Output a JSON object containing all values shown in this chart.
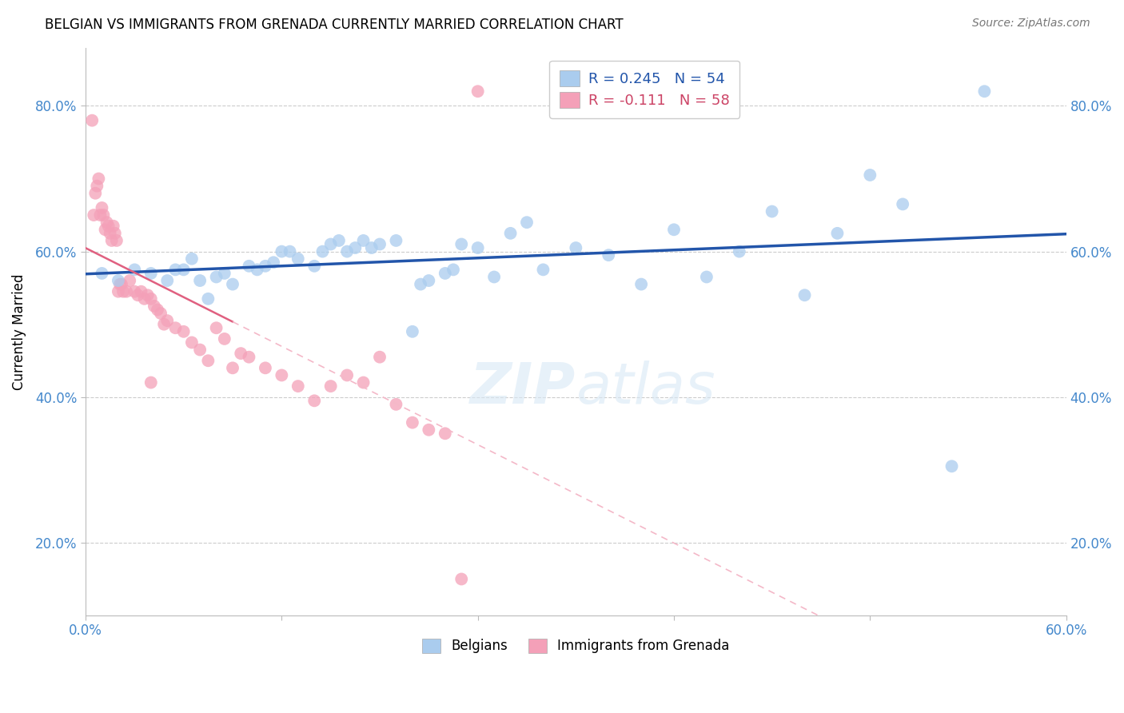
{
  "title": "BELGIAN VS IMMIGRANTS FROM GRENADA CURRENTLY MARRIED CORRELATION CHART",
  "source": "Source: ZipAtlas.com",
  "ylabel_label": "Currently Married",
  "xlim": [
    0.0,
    0.6
  ],
  "ylim": [
    0.1,
    0.88
  ],
  "yticks": [
    0.2,
    0.4,
    0.6,
    0.8
  ],
  "ytick_labels": [
    "20.0%",
    "40.0%",
    "60.0%",
    "80.0%"
  ],
  "xticks": [
    0.0,
    0.12,
    0.24,
    0.36,
    0.48,
    0.6
  ],
  "xtick_labels": [
    "0.0%",
    "",
    "",
    "",
    "",
    "60.0%"
  ],
  "legend_label1": "Belgians",
  "legend_label2": "Immigrants from Grenada",
  "blue_color": "#aaccee",
  "pink_color": "#f4a0b8",
  "blue_line_color": "#2255aa",
  "pink_line_solid_color": "#e06080",
  "pink_line_dash_color": "#f4b8c8",
  "blue_R": 0.245,
  "blue_N": 54,
  "pink_R": -0.111,
  "pink_N": 58,
  "blue_x": [
    0.01,
    0.02,
    0.03,
    0.04,
    0.05,
    0.055,
    0.06,
    0.065,
    0.07,
    0.075,
    0.08,
    0.085,
    0.09,
    0.1,
    0.105,
    0.11,
    0.115,
    0.12,
    0.125,
    0.13,
    0.14,
    0.145,
    0.15,
    0.155,
    0.16,
    0.165,
    0.17,
    0.175,
    0.18,
    0.19,
    0.2,
    0.205,
    0.21,
    0.22,
    0.225,
    0.23,
    0.24,
    0.25,
    0.26,
    0.27,
    0.28,
    0.3,
    0.32,
    0.34,
    0.36,
    0.38,
    0.4,
    0.42,
    0.44,
    0.46,
    0.48,
    0.5,
    0.53,
    0.55
  ],
  "blue_y": [
    0.57,
    0.56,
    0.575,
    0.57,
    0.56,
    0.575,
    0.575,
    0.59,
    0.56,
    0.535,
    0.565,
    0.57,
    0.555,
    0.58,
    0.575,
    0.58,
    0.585,
    0.6,
    0.6,
    0.59,
    0.58,
    0.6,
    0.61,
    0.615,
    0.6,
    0.605,
    0.615,
    0.605,
    0.61,
    0.615,
    0.49,
    0.555,
    0.56,
    0.57,
    0.575,
    0.61,
    0.605,
    0.565,
    0.625,
    0.64,
    0.575,
    0.605,
    0.595,
    0.555,
    0.63,
    0.565,
    0.6,
    0.655,
    0.54,
    0.625,
    0.705,
    0.665,
    0.305,
    0.82
  ],
  "pink_x": [
    0.004,
    0.005,
    0.006,
    0.007,
    0.008,
    0.009,
    0.01,
    0.011,
    0.012,
    0.013,
    0.014,
    0.015,
    0.016,
    0.017,
    0.018,
    0.019,
    0.02,
    0.021,
    0.022,
    0.023,
    0.025,
    0.027,
    0.03,
    0.032,
    0.034,
    0.036,
    0.038,
    0.04,
    0.042,
    0.044,
    0.046,
    0.048,
    0.05,
    0.055,
    0.06,
    0.065,
    0.07,
    0.075,
    0.08,
    0.085,
    0.09,
    0.095,
    0.1,
    0.11,
    0.12,
    0.13,
    0.14,
    0.15,
    0.16,
    0.17,
    0.18,
    0.19,
    0.2,
    0.21,
    0.22,
    0.23,
    0.24,
    0.04
  ],
  "pink_y": [
    0.78,
    0.65,
    0.68,
    0.69,
    0.7,
    0.65,
    0.66,
    0.65,
    0.63,
    0.64,
    0.635,
    0.625,
    0.615,
    0.635,
    0.625,
    0.615,
    0.545,
    0.555,
    0.555,
    0.545,
    0.545,
    0.56,
    0.545,
    0.54,
    0.545,
    0.535,
    0.54,
    0.535,
    0.525,
    0.52,
    0.515,
    0.5,
    0.505,
    0.495,
    0.49,
    0.475,
    0.465,
    0.45,
    0.495,
    0.48,
    0.44,
    0.46,
    0.455,
    0.44,
    0.43,
    0.415,
    0.395,
    0.415,
    0.43,
    0.42,
    0.455,
    0.39,
    0.365,
    0.355,
    0.35,
    0.15,
    0.82,
    0.42
  ]
}
